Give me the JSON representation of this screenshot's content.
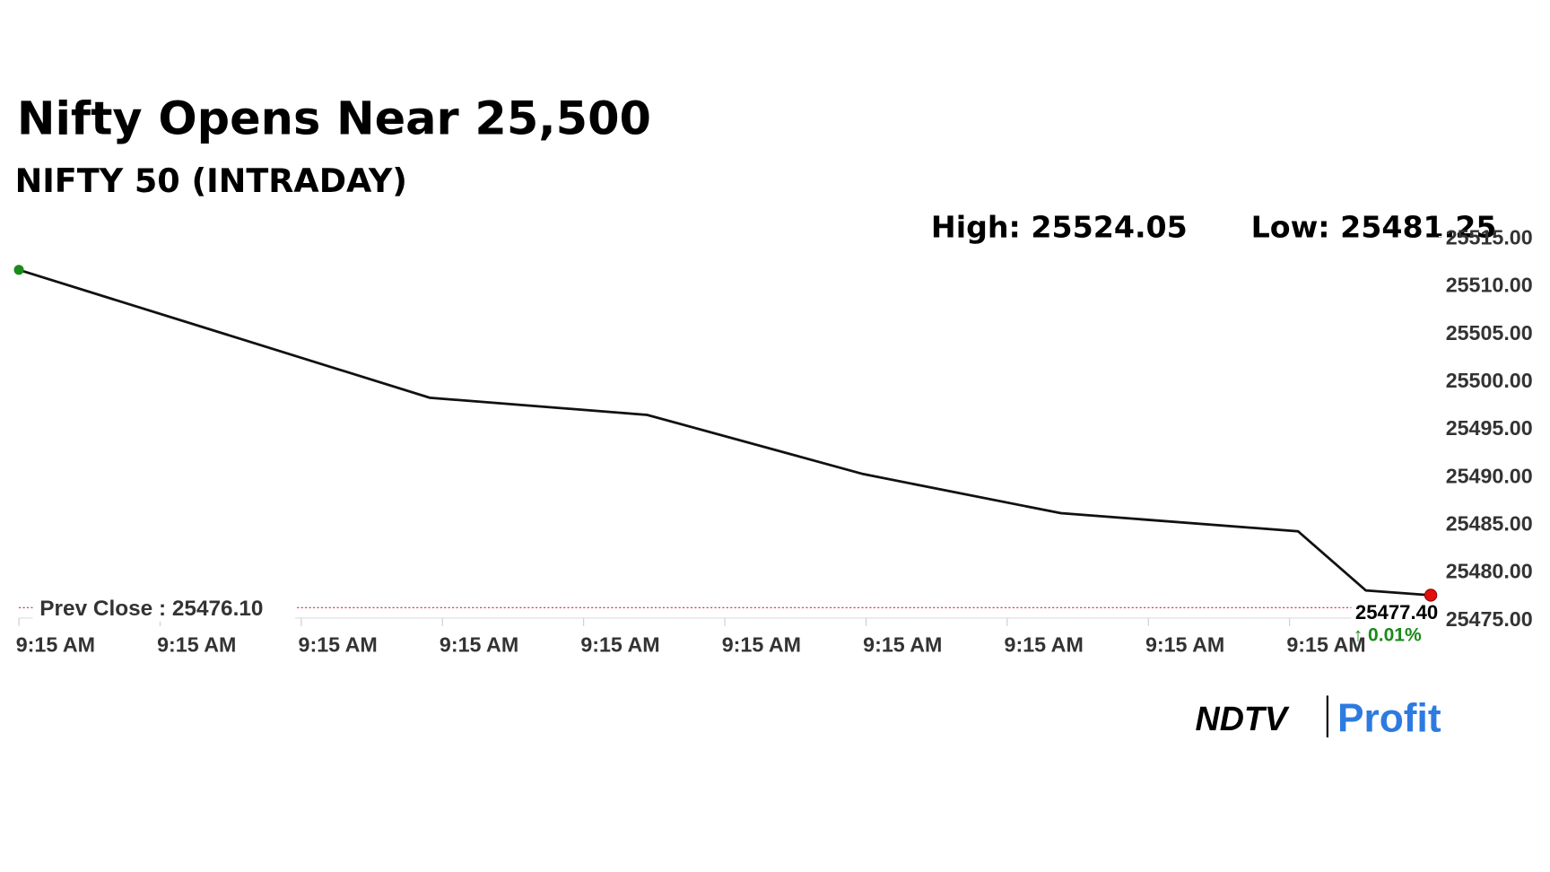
{
  "chart_data": {
    "type": "line",
    "title": "Nifty Opens Near 25,500",
    "subtitle": "NIFTY 50 (INTRADAY)",
    "high_label": "High: 25524.05",
    "low_label": "Low: 25481.25",
    "x": [
      0,
      2.91,
      4.45,
      5.98,
      7.38,
      9.06,
      9.54,
      10
    ],
    "series": [
      {
        "name": "NIFTY 50",
        "color": "#111111",
        "values": [
          25511.5,
          25498.1,
          25496.3,
          25490.1,
          25486.0,
          25484.1,
          25477.9,
          25477.4
        ]
      }
    ],
    "xlim": [
      0,
      10
    ],
    "xticks": [
      {
        "value": 0,
        "label": "9:15 AM"
      },
      {
        "value": 1,
        "label": "9:15 AM"
      },
      {
        "value": 2,
        "label": "9:15 AM"
      },
      {
        "value": 3,
        "label": "9:15 AM"
      },
      {
        "value": 4,
        "label": "9:15 AM"
      },
      {
        "value": 5,
        "label": "9:15 AM"
      },
      {
        "value": 6,
        "label": "9:15 AM"
      },
      {
        "value": 7,
        "label": "9:15 AM"
      },
      {
        "value": 8,
        "label": "9:15 AM"
      },
      {
        "value": 9,
        "label": "9:15 AM"
      }
    ],
    "ylim": [
      25475,
      25515
    ],
    "yticks": [
      {
        "value": 25475,
        "label": "25475.00"
      },
      {
        "value": 25480,
        "label": "25480.00"
      },
      {
        "value": 25485,
        "label": "25485.00"
      },
      {
        "value": 25490,
        "label": "25490.00"
      },
      {
        "value": 25495,
        "label": "25495.00"
      },
      {
        "value": 25500,
        "label": "25500.00"
      },
      {
        "value": 25505,
        "label": "25505.00"
      },
      {
        "value": 25510,
        "label": "25510.00"
      },
      {
        "value": 25515,
        "label": "25515.00"
      }
    ],
    "prev_close": {
      "value": 25476.1,
      "label": "Prev Close : 25476.10"
    },
    "last_value_label": "25477.40",
    "change_label": "↑ 0.01%",
    "start_color": "#1a8a1a",
    "end_color": "#e01010",
    "logo": {
      "left": "NDTV",
      "right": "Profit"
    }
  }
}
